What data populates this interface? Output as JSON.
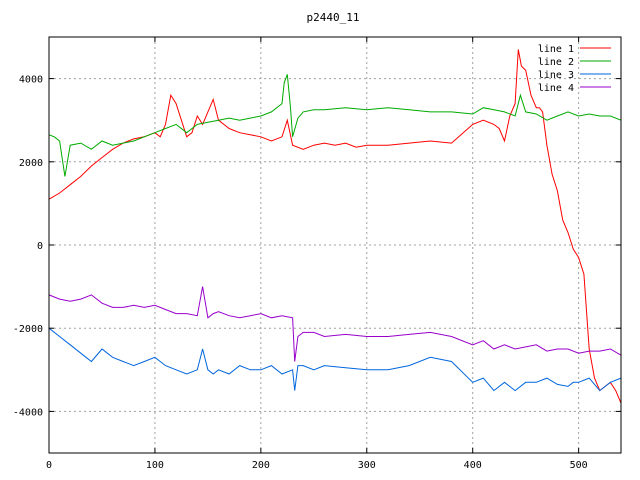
{
  "chart_data": {
    "type": "line",
    "title": "p2440_11",
    "xlabel": "",
    "ylabel": "",
    "xlim": [
      0,
      540
    ],
    "ylim": [
      -5000,
      5000
    ],
    "xticks": [
      0,
      100,
      200,
      300,
      400,
      500
    ],
    "yticks": [
      -4000,
      -2000,
      0,
      2000,
      4000
    ],
    "grid": true,
    "legend": "top-right",
    "series": [
      {
        "name": "line 1",
        "color": "#ff0000",
        "x": [
          0,
          10,
          20,
          30,
          40,
          50,
          60,
          70,
          80,
          90,
          100,
          105,
          110,
          115,
          120,
          125,
          130,
          135,
          140,
          145,
          150,
          155,
          160,
          170,
          180,
          190,
          200,
          210,
          220,
          225,
          230,
          240,
          250,
          260,
          270,
          280,
          290,
          300,
          320,
          340,
          360,
          380,
          400,
          410,
          420,
          425,
          430,
          435,
          440,
          443,
          446,
          450,
          455,
          460,
          463,
          466,
          470,
          475,
          480,
          485,
          490,
          495,
          500,
          505,
          510,
          515,
          520,
          525,
          530,
          535,
          540
        ],
        "y": [
          1100,
          1250,
          1450,
          1650,
          1900,
          2100,
          2300,
          2450,
          2550,
          2600,
          2700,
          2600,
          2900,
          3600,
          3400,
          3000,
          2600,
          2700,
          3100,
          2900,
          3200,
          3500,
          3000,
          2800,
          2700,
          2650,
          2600,
          2500,
          2600,
          3000,
          2400,
          2300,
          2400,
          2450,
          2400,
          2450,
          2350,
          2400,
          2400,
          2450,
          2500,
          2450,
          2900,
          3000,
          2900,
          2800,
          2500,
          3100,
          3400,
          4700,
          4300,
          4200,
          3600,
          3300,
          3300,
          3200,
          2400,
          1700,
          1300,
          600,
          300,
          -100,
          -300,
          -700,
          -2500,
          -3200,
          -3500,
          -3400,
          -3300,
          -3500,
          -3800
        ]
      },
      {
        "name": "line 2",
        "color": "#00aa00",
        "x": [
          0,
          5,
          10,
          15,
          20,
          30,
          40,
          50,
          60,
          70,
          80,
          90,
          100,
          110,
          120,
          130,
          140,
          150,
          160,
          170,
          180,
          190,
          200,
          210,
          220,
          222,
          225,
          228,
          230,
          235,
          240,
          250,
          260,
          280,
          300,
          320,
          340,
          360,
          380,
          400,
          410,
          420,
          430,
          440,
          445,
          450,
          460,
          470,
          480,
          490,
          500,
          510,
          520,
          530,
          540
        ],
        "y": [
          2650,
          2600,
          2500,
          1650,
          2400,
          2450,
          2300,
          2500,
          2400,
          2450,
          2500,
          2600,
          2700,
          2800,
          2900,
          2700,
          2900,
          2950,
          3000,
          3050,
          3000,
          3050,
          3100,
          3200,
          3400,
          3900,
          4100,
          3300,
          2600,
          3050,
          3200,
          3250,
          3250,
          3300,
          3250,
          3300,
          3250,
          3200,
          3200,
          3150,
          3300,
          3250,
          3200,
          3100,
          3600,
          3200,
          3150,
          3000,
          3100,
          3200,
          3100,
          3150,
          3100,
          3100,
          3000
        ]
      },
      {
        "name": "line 3",
        "color": "#0066dd",
        "x": [
          0,
          10,
          20,
          30,
          40,
          50,
          60,
          70,
          80,
          90,
          100,
          110,
          120,
          130,
          140,
          145,
          150,
          155,
          160,
          170,
          180,
          190,
          200,
          210,
          220,
          230,
          232,
          235,
          240,
          250,
          260,
          280,
          300,
          320,
          340,
          360,
          380,
          400,
          410,
          420,
          430,
          440,
          450,
          460,
          470,
          480,
          490,
          495,
          500,
          510,
          520,
          530,
          540
        ],
        "y": [
          -2000,
          -2200,
          -2400,
          -2600,
          -2800,
          -2500,
          -2700,
          -2800,
          -2900,
          -2800,
          -2700,
          -2900,
          -3000,
          -3100,
          -3000,
          -2500,
          -3000,
          -3100,
          -3000,
          -3100,
          -2900,
          -3000,
          -3000,
          -2900,
          -3100,
          -3000,
          -3500,
          -2900,
          -2900,
          -3000,
          -2900,
          -2950,
          -3000,
          -3000,
          -2900,
          -2700,
          -2800,
          -3300,
          -3200,
          -3500,
          -3300,
          -3500,
          -3300,
          -3300,
          -3200,
          -3350,
          -3400,
          -3300,
          -3300,
          -3200,
          -3500,
          -3300,
          -3200
        ]
      },
      {
        "name": "line 4",
        "color": "#9900cc",
        "x": [
          0,
          10,
          20,
          30,
          40,
          50,
          60,
          70,
          80,
          90,
          100,
          110,
          120,
          130,
          140,
          145,
          150,
          155,
          160,
          170,
          180,
          190,
          200,
          210,
          220,
          230,
          232,
          235,
          240,
          250,
          260,
          280,
          300,
          320,
          340,
          360,
          380,
          400,
          410,
          420,
          430,
          440,
          450,
          460,
          470,
          480,
          490,
          500,
          510,
          520,
          530,
          540
        ],
        "y": [
          -1200,
          -1300,
          -1350,
          -1300,
          -1200,
          -1400,
          -1500,
          -1500,
          -1450,
          -1500,
          -1450,
          -1550,
          -1650,
          -1650,
          -1700,
          -1000,
          -1750,
          -1650,
          -1600,
          -1700,
          -1750,
          -1700,
          -1650,
          -1750,
          -1700,
          -1750,
          -2800,
          -2200,
          -2100,
          -2100,
          -2200,
          -2150,
          -2200,
          -2200,
          -2150,
          -2100,
          -2200,
          -2400,
          -2300,
          -2500,
          -2400,
          -2500,
          -2450,
          -2400,
          -2550,
          -2500,
          -2500,
          -2600,
          -2550,
          -2550,
          -2500,
          -2650
        ]
      }
    ]
  }
}
